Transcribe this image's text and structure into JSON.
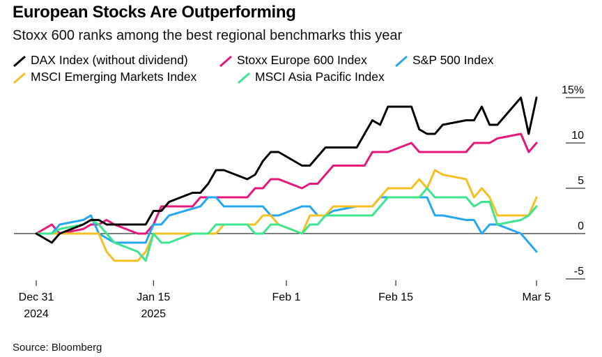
{
  "title": "European Stocks Are Outperforming",
  "subtitle": "Stoxx 600 ranks among the best regional benchmarks this year",
  "source": "Source: Bloomberg",
  "chart_data": {
    "type": "line",
    "x_ticks": [
      {
        "date": "2024-12-31",
        "line1": "Dec 31",
        "line2": "2024"
      },
      {
        "date": "2025-01-15",
        "line1": "Jan 15",
        "line2": "2025"
      },
      {
        "date": "2025-02-01",
        "line1": "Feb 1",
        "line2": ""
      },
      {
        "date": "2025-02-15",
        "line1": "Feb 15",
        "line2": ""
      },
      {
        "date": "2025-03-05",
        "line1": "Mar 5",
        "line2": ""
      }
    ],
    "y_ticks": [
      {
        "value": 15,
        "label": "15%"
      },
      {
        "value": 10,
        "label": "10"
      },
      {
        "value": 5,
        "label": "5"
      },
      {
        "value": 0,
        "label": "0"
      },
      {
        "value": -5,
        "label": "-5"
      }
    ],
    "ylim": [
      -5,
      15
    ],
    "series": [
      {
        "name": "DAX Index (without dividend)",
        "color": "#000000",
        "x": [
          "2024-12-31",
          "2025-01-02",
          "2025-01-03",
          "2025-01-06",
          "2025-01-07",
          "2025-01-08",
          "2025-01-09",
          "2025-01-10",
          "2025-01-13",
          "2025-01-14",
          "2025-01-15",
          "2025-01-16",
          "2025-01-17",
          "2025-01-20",
          "2025-01-21",
          "2025-01-22",
          "2025-01-23",
          "2025-01-24",
          "2025-01-27",
          "2025-01-28",
          "2025-01-29",
          "2025-01-30",
          "2025-01-31",
          "2025-02-03",
          "2025-02-04",
          "2025-02-05",
          "2025-02-06",
          "2025-02-07",
          "2025-02-10",
          "2025-02-11",
          "2025-02-12",
          "2025-02-13",
          "2025-02-14",
          "2025-02-17",
          "2025-02-18",
          "2025-02-19",
          "2025-02-20",
          "2025-02-21",
          "2025-02-24",
          "2025-02-25",
          "2025-02-26",
          "2025-02-27",
          "2025-02-28",
          "2025-03-03",
          "2025-03-04",
          "2025-03-05"
        ],
        "y": [
          0,
          -1,
          0,
          1,
          1.5,
          1.5,
          1,
          1,
          1,
          1,
          2.5,
          2.5,
          3.5,
          4.5,
          4.5,
          5.5,
          7,
          7,
          6,
          6.5,
          8,
          9,
          9,
          7.5,
          7.5,
          8.5,
          9.5,
          9.5,
          9.5,
          11,
          12.5,
          12,
          14,
          14,
          11.5,
          11,
          11,
          12,
          12.5,
          12.5,
          14,
          12,
          12,
          15,
          11,
          15
        ]
      },
      {
        "name": "Stoxx Europe 600 Index",
        "color": "#e5177b",
        "x": [
          "2024-12-31",
          "2025-01-02",
          "2025-01-03",
          "2025-01-06",
          "2025-01-07",
          "2025-01-08",
          "2025-01-09",
          "2025-01-10",
          "2025-01-13",
          "2025-01-14",
          "2025-01-15",
          "2025-01-16",
          "2025-01-17",
          "2025-01-20",
          "2025-01-21",
          "2025-01-22",
          "2025-01-23",
          "2025-01-24",
          "2025-01-27",
          "2025-01-28",
          "2025-01-29",
          "2025-01-30",
          "2025-01-31",
          "2025-02-03",
          "2025-02-04",
          "2025-02-05",
          "2025-02-06",
          "2025-02-07",
          "2025-02-10",
          "2025-02-11",
          "2025-02-12",
          "2025-02-13",
          "2025-02-14",
          "2025-02-17",
          "2025-02-18",
          "2025-02-19",
          "2025-02-20",
          "2025-02-21",
          "2025-02-24",
          "2025-02-25",
          "2025-02-26",
          "2025-02-27",
          "2025-02-28",
          "2025-03-03",
          "2025-03-04",
          "2025-03-05"
        ],
        "y": [
          0,
          1,
          0,
          0.5,
          1,
          1,
          1.5,
          1,
          0,
          0,
          1,
          3,
          3,
          3,
          4,
          4,
          4,
          4,
          4,
          5,
          5,
          6,
          6,
          5,
          5.5,
          5.5,
          6.5,
          7.5,
          7.5,
          7.5,
          9,
          9,
          9,
          10,
          9,
          9,
          9,
          9,
          9,
          10,
          10,
          10,
          10.5,
          11,
          9,
          10
        ]
      },
      {
        "name": "S&P 500 Index",
        "color": "#26a8f0",
        "x": [
          "2024-12-31",
          "2025-01-02",
          "2025-01-03",
          "2025-01-06",
          "2025-01-07",
          "2025-01-08",
          "2025-01-10",
          "2025-01-13",
          "2025-01-14",
          "2025-01-15",
          "2025-01-16",
          "2025-01-17",
          "2025-01-21",
          "2025-01-22",
          "2025-01-23",
          "2025-01-24",
          "2025-01-27",
          "2025-01-28",
          "2025-01-29",
          "2025-01-30",
          "2025-01-31",
          "2025-02-03",
          "2025-02-04",
          "2025-02-05",
          "2025-02-06",
          "2025-02-07",
          "2025-02-10",
          "2025-02-11",
          "2025-02-12",
          "2025-02-13",
          "2025-02-14",
          "2025-02-18",
          "2025-02-19",
          "2025-02-20",
          "2025-02-21",
          "2025-02-24",
          "2025-02-25",
          "2025-02-26",
          "2025-02-27",
          "2025-02-28",
          "2025-03-03",
          "2025-03-04",
          "2025-03-05"
        ],
        "y": [
          0,
          0,
          1,
          1.5,
          2,
          0,
          -1,
          -1,
          -1,
          1,
          1,
          2,
          3,
          4,
          4,
          3,
          3,
          3,
          3,
          2,
          2,
          3,
          3,
          2,
          2,
          2.5,
          3,
          3,
          3,
          4,
          4,
          4,
          4,
          2,
          2,
          1.5,
          1.5,
          0,
          1,
          1,
          0,
          -1,
          -2
        ]
      },
      {
        "name": "MSCI Emerging Markets Index",
        "color": "#f5c021",
        "x": [
          "2024-12-31",
          "2025-01-02",
          "2025-01-03",
          "2025-01-06",
          "2025-01-07",
          "2025-01-08",
          "2025-01-09",
          "2025-01-10",
          "2025-01-13",
          "2025-01-14",
          "2025-01-15",
          "2025-01-16",
          "2025-01-17",
          "2025-01-20",
          "2025-01-21",
          "2025-01-22",
          "2025-01-23",
          "2025-01-24",
          "2025-01-27",
          "2025-01-28",
          "2025-01-29",
          "2025-01-30",
          "2025-01-31",
          "2025-02-03",
          "2025-02-04",
          "2025-02-05",
          "2025-02-06",
          "2025-02-07",
          "2025-02-10",
          "2025-02-11",
          "2025-02-12",
          "2025-02-13",
          "2025-02-14",
          "2025-02-17",
          "2025-02-18",
          "2025-02-19",
          "2025-02-20",
          "2025-02-21",
          "2025-02-24",
          "2025-02-25",
          "2025-02-26",
          "2025-02-27",
          "2025-02-28",
          "2025-03-03",
          "2025-03-04",
          "2025-03-05"
        ],
        "y": [
          0,
          0,
          0,
          0,
          0,
          0,
          -2,
          -3,
          -3,
          -2,
          0,
          0,
          0,
          0,
          0,
          0,
          0,
          1,
          1,
          1,
          2,
          2,
          1,
          0,
          2,
          2,
          2,
          3,
          3,
          3,
          3,
          4,
          5,
          5,
          6,
          5,
          7,
          6.5,
          6,
          4,
          5,
          4,
          2,
          2,
          2,
          4
        ]
      },
      {
        "name": "MSCI Asia Pacific Index",
        "color": "#3de58f",
        "x": [
          "2024-12-31",
          "2025-01-02",
          "2025-01-03",
          "2025-01-06",
          "2025-01-07",
          "2025-01-08",
          "2025-01-09",
          "2025-01-10",
          "2025-01-13",
          "2025-01-14",
          "2025-01-15",
          "2025-01-16",
          "2025-01-17",
          "2025-01-20",
          "2025-01-21",
          "2025-01-22",
          "2025-01-23",
          "2025-01-24",
          "2025-01-27",
          "2025-01-28",
          "2025-01-29",
          "2025-01-30",
          "2025-01-31",
          "2025-02-03",
          "2025-02-04",
          "2025-02-05",
          "2025-02-06",
          "2025-02-07",
          "2025-02-10",
          "2025-02-11",
          "2025-02-12",
          "2025-02-13",
          "2025-02-14",
          "2025-02-17",
          "2025-02-18",
          "2025-02-19",
          "2025-02-20",
          "2025-02-21",
          "2025-02-24",
          "2025-02-25",
          "2025-02-26",
          "2025-02-27",
          "2025-02-28",
          "2025-03-03",
          "2025-03-04",
          "2025-03-05"
        ],
        "y": [
          0,
          0,
          0.5,
          1,
          1.5,
          1,
          0,
          -1,
          -2,
          -3,
          0,
          -1,
          -1,
          0,
          0,
          0,
          1,
          1,
          1,
          0,
          0,
          1,
          1,
          0,
          1,
          1,
          2,
          2,
          2,
          2,
          2,
          3,
          4,
          4,
          4,
          5,
          4,
          4,
          4,
          3,
          3.5,
          3.5,
          1,
          1.5,
          2,
          3
        ]
      }
    ]
  }
}
